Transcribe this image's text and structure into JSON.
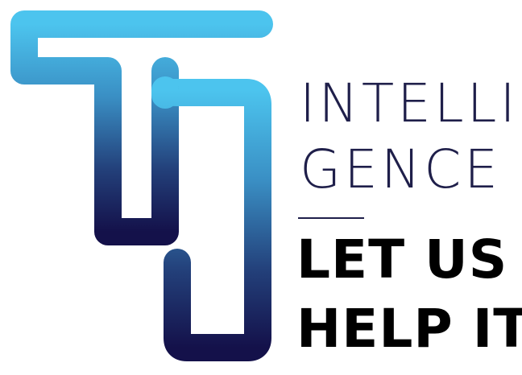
{
  "logo": {
    "mark": "TI-monogram-logo",
    "gradient_top": "#4cc4ee",
    "gradient_bottom": "#14114a",
    "wordmark_line1": "INTELLI",
    "wordmark_line2": "GENCE",
    "tagline_line1": "LET US",
    "tagline_line2": "HELP IT"
  },
  "colors": {
    "wordmark": "#1f1f4a",
    "tagline": "#000000"
  }
}
